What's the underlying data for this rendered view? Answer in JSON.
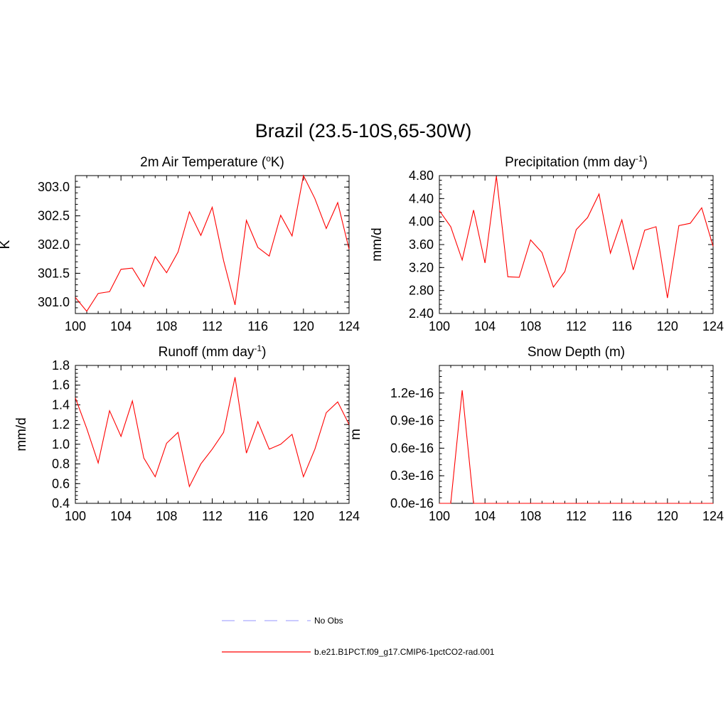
{
  "main_title": "Brazil (23.5-10S,65-30W)",
  "legend": [
    {
      "label": "No Obs",
      "color": "#aaaaff",
      "dash": true
    },
    {
      "label": "b.e21.B1PCT.f09_g17.CMIP6-1pctCO2-rad.001",
      "color": "#ff0000",
      "dash": false
    }
  ],
  "chart_data": [
    {
      "type": "line",
      "title": "2m Air Temperature",
      "title_paren": "(",
      "title_sup": "o",
      "title_unit_after": "K)",
      "ylabel": "K",
      "xlim": [
        100,
        124
      ],
      "ylim": [
        300.8,
        303.2
      ],
      "xticks": [
        100,
        104,
        108,
        112,
        116,
        120,
        124
      ],
      "yticks": [
        301.0,
        301.5,
        302.0,
        302.5,
        303.0
      ],
      "ytick_labels": [
        "301.0",
        "301.5",
        "302.0",
        "302.5",
        "303.0"
      ],
      "x": [
        100,
        101,
        102,
        103,
        104,
        105,
        106,
        107,
        108,
        109,
        110,
        111,
        112,
        113,
        114,
        115,
        116,
        117,
        118,
        119,
        120,
        121,
        122,
        123,
        124
      ],
      "series": [
        {
          "color": "#ff0000",
          "values": [
            301.08,
            300.84,
            301.15,
            301.18,
            301.57,
            301.59,
            301.27,
            301.79,
            301.51,
            301.87,
            302.57,
            302.16,
            302.65,
            301.72,
            300.95,
            302.42,
            301.95,
            301.8,
            302.51,
            302.15,
            303.2,
            302.8,
            302.28,
            302.73,
            301.92
          ]
        }
      ]
    },
    {
      "type": "line",
      "title": "Precipitation (mm day",
      "title_sup": "-1",
      "title_unit_after": ")",
      "ylabel": "mm/d",
      "xlim": [
        100,
        124
      ],
      "ylim": [
        2.4,
        4.8
      ],
      "xticks": [
        100,
        104,
        108,
        112,
        116,
        120,
        124
      ],
      "yticks": [
        2.4,
        2.8,
        3.2,
        3.6,
        4.0,
        4.4,
        4.8
      ],
      "ytick_labels": [
        "2.40",
        "2.80",
        "3.20",
        "3.60",
        "4.00",
        "4.40",
        "4.80"
      ],
      "x": [
        100,
        101,
        102,
        103,
        104,
        105,
        106,
        107,
        108,
        109,
        110,
        111,
        112,
        113,
        114,
        115,
        116,
        117,
        118,
        119,
        120,
        121,
        122,
        123,
        124
      ],
      "series": [
        {
          "color": "#ff0000",
          "values": [
            4.19,
            3.91,
            3.33,
            4.2,
            3.28,
            4.79,
            3.04,
            3.03,
            3.68,
            3.46,
            2.86,
            3.13,
            3.86,
            4.07,
            4.48,
            3.45,
            4.03,
            3.16,
            3.85,
            3.91,
            2.67,
            3.93,
            3.97,
            4.24,
            3.57
          ]
        }
      ]
    },
    {
      "type": "line",
      "title": "Runoff (mm day",
      "title_sup": "-1",
      "title_unit_after": ")",
      "ylabel": "mm/d",
      "xlim": [
        100,
        124
      ],
      "ylim": [
        0.4,
        1.8
      ],
      "xticks": [
        100,
        104,
        108,
        112,
        116,
        120,
        124
      ],
      "yticks": [
        0.4,
        0.6,
        0.8,
        1.0,
        1.2,
        1.4,
        1.6,
        1.8
      ],
      "ytick_labels": [
        "0.4",
        "0.6",
        "0.8",
        "1.0",
        "1.2",
        "1.4",
        "1.6",
        "1.8"
      ],
      "x": [
        100,
        101,
        102,
        103,
        104,
        105,
        106,
        107,
        108,
        109,
        110,
        111,
        112,
        113,
        114,
        115,
        116,
        117,
        118,
        119,
        120,
        121,
        122,
        123,
        124
      ],
      "series": [
        {
          "color": "#ff0000",
          "values": [
            1.47,
            1.16,
            0.81,
            1.34,
            1.08,
            1.44,
            0.86,
            0.67,
            1.01,
            1.12,
            0.57,
            0.8,
            0.95,
            1.12,
            1.68,
            0.91,
            1.23,
            0.95,
            1.0,
            1.1,
            0.67,
            0.95,
            1.32,
            1.43,
            1.2
          ]
        }
      ]
    },
    {
      "type": "line",
      "title": "Snow Depth (m)",
      "title_sup": "",
      "title_unit_after": "",
      "ylabel": "m",
      "xlim": [
        100,
        124
      ],
      "ylim": [
        0,
        1.5e-16
      ],
      "xticks": [
        100,
        104,
        108,
        112,
        116,
        120,
        124
      ],
      "yticks": [
        0,
        3e-17,
        6e-17,
        9e-17,
        1.2e-16
      ],
      "ytick_labels": [
        "0.0e-16",
        "0.3e-16",
        "0.6e-16",
        "0.9e-16",
        "1.2e-16"
      ],
      "x": [
        100,
        101,
        102,
        103,
        104,
        105,
        106,
        107,
        108,
        109,
        110,
        111,
        112,
        113,
        114,
        115,
        116,
        117,
        118,
        119,
        120,
        121,
        122,
        123,
        124
      ],
      "series": [
        {
          "color": "#ff0000",
          "values": [
            0,
            0,
            1.23e-16,
            0,
            0,
            0,
            0,
            0,
            0,
            0,
            0,
            0,
            0,
            0,
            0,
            0,
            0,
            0,
            0,
            0,
            0,
            0,
            0,
            0,
            0
          ]
        }
      ]
    }
  ]
}
